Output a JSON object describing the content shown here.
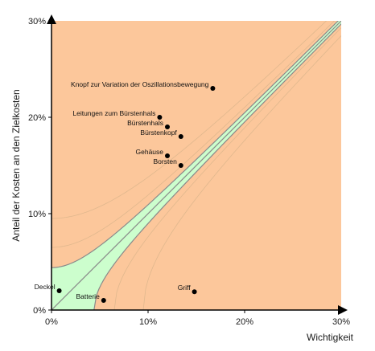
{
  "chart_data": {
    "type": "scatter",
    "xlabel": "Wichtigkeit",
    "ylabel": "Anteil der Kosten an den Zielkosten",
    "xlim": [
      0,
      30
    ],
    "ylim": [
      0,
      30
    ],
    "x_ticks": [
      "0%",
      "10%",
      "20%",
      "30%"
    ],
    "y_ticks": [
      "0%",
      "10%",
      "20%",
      "30%"
    ],
    "grid": false,
    "points": [
      {
        "label": "Knopf zur Variation der Oszillationsbewegung",
        "x": 16.7,
        "y": 23.0
      },
      {
        "label": "Leitungen zum Bürstenhals",
        "x": 11.2,
        "y": 20.0
      },
      {
        "label": "Bürstenhals",
        "x": 12.0,
        "y": 19.0
      },
      {
        "label": "Bürstenkopf",
        "x": 13.4,
        "y": 18.0
      },
      {
        "label": "Gehäuse",
        "x": 12.0,
        "y": 16.0
      },
      {
        "label": "Borsten",
        "x": 13.4,
        "y": 15.0
      },
      {
        "label": "Deckel",
        "x": 0.8,
        "y": 2.0
      },
      {
        "label": "Batterie",
        "x": 5.4,
        "y": 1.0
      },
      {
        "label": "Griff",
        "x": 14.8,
        "y": 1.9
      }
    ],
    "colors": {
      "outside_zone": "#fcc79b",
      "target_zone": "#ccfecd",
      "curves": "#8a8a8a",
      "points": "#000000",
      "axes": "#000000"
    }
  }
}
